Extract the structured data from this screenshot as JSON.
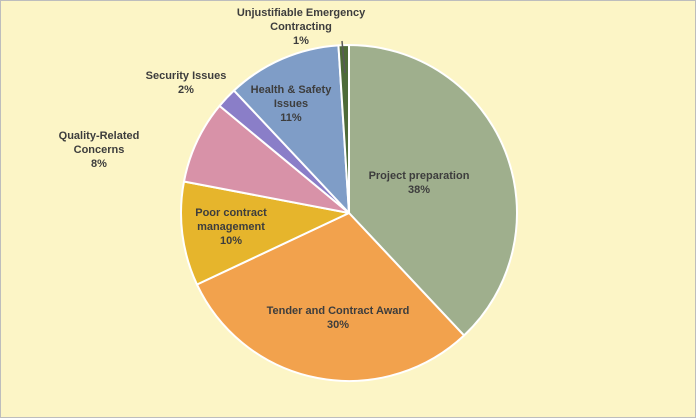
{
  "page": {
    "background_color": "#FCF5C6",
    "text_color": "#3D3D3D",
    "slice_border_color": "#FFFFFF"
  },
  "chart_data": {
    "type": "pie",
    "title": "",
    "start_angle_deg": 0,
    "direction": "clockwise",
    "legend_position": "none",
    "slices": [
      {
        "label": "Project preparation",
        "value": 38,
        "pct_label": "38%",
        "color": "#9FAF8D",
        "label_position": "inside"
      },
      {
        "label": "Tender and Contract Award",
        "value": 30,
        "pct_label": "30%",
        "color": "#F2A24D",
        "label_position": "inside"
      },
      {
        "label": "Poor contract management",
        "value": 10,
        "pct_label": "10%",
        "color": "#E6B52C",
        "label_position": "inside"
      },
      {
        "label": "Quality-Related Concerns",
        "value": 8,
        "pct_label": "8%",
        "color": "#D892A8",
        "label_position": "outside"
      },
      {
        "label": "Security Issues",
        "value": 2,
        "pct_label": "2%",
        "color": "#8A7EC8",
        "label_position": "outside"
      },
      {
        "label": "Health & Safety Issues",
        "value": 11,
        "pct_label": "11%",
        "color": "#7F9DC7",
        "label_position": "inside"
      },
      {
        "label": "Unjustifiable Emergency Contracting",
        "value": 1,
        "pct_label": "1%",
        "color": "#4E6B38",
        "label_position": "outside"
      }
    ]
  }
}
